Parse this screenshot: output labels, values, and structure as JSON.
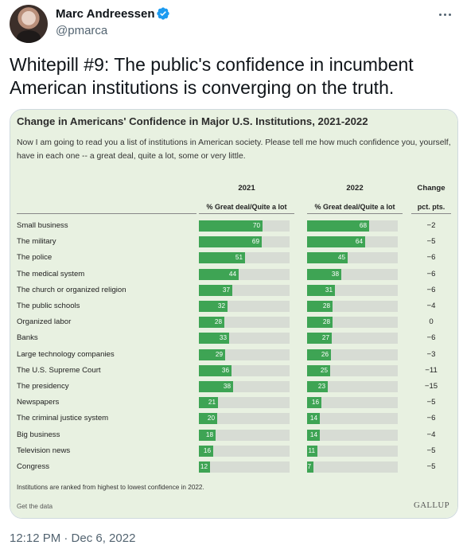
{
  "header": {
    "name": "Marc Andreessen",
    "handle": "@pmarca"
  },
  "tweet": {
    "text": "Whitepill #9: The public's confidence in incumbent American institutions is converging on the truth.",
    "timestamp": "12:12 PM · Dec 6, 2022"
  },
  "icons": {
    "verified": "verified-badge-icon",
    "more": "more-options-icon"
  },
  "colors": {
    "bar": "#3ea454",
    "track": "#d7dcd4",
    "card_background": "#e8f1e1",
    "verified": "#1d9bf0"
  },
  "chart": {
    "title": "Change in Americans' Confidence in Major U.S. Institutions, 2021-2022",
    "subtitle": "Now I am going to read you a list of institutions in American society. Please tell me how much confidence you, yourself, have in each one -- a great deal, quite a lot, some or very little.",
    "col_2021_year": "2021",
    "col_2022_year": "2022",
    "col_2021_sub": "% Great deal/Quite a lot",
    "col_2022_sub": "% Great deal/Quite a lot",
    "col_change": "Change",
    "col_change_sub": "pct. pts.",
    "footnote": "Institutions are ranked from highest to lowest confidence in 2022.",
    "get_data": "Get the data",
    "source": "GALLUP"
  },
  "chart_data": {
    "type": "bar",
    "title": "Change in Americans' Confidence in Major U.S. Institutions, 2021-2022",
    "categories": [
      "Small business",
      "The military",
      "The police",
      "The medical system",
      "The church or organized religion",
      "The public schools",
      "Organized labor",
      "Banks",
      "Large technology companies",
      "The U.S. Supreme Court",
      "The presidency",
      "Newspapers",
      "The criminal justice system",
      "Big business",
      "Television news",
      "Congress"
    ],
    "series": [
      {
        "name": "2021",
        "values": [
          70,
          69,
          51,
          44,
          37,
          32,
          28,
          33,
          29,
          36,
          38,
          21,
          20,
          18,
          16,
          12
        ]
      },
      {
        "name": "2022",
        "values": [
          68,
          64,
          45,
          38,
          31,
          28,
          28,
          27,
          26,
          25,
          23,
          16,
          14,
          14,
          11,
          7
        ]
      }
    ],
    "change": [
      "−2",
      "−5",
      "−6",
      "−6",
      "−6",
      "−4",
      "0",
      "−6",
      "−3",
      "−11",
      "−15",
      "−5",
      "−6",
      "−4",
      "−5",
      "−5"
    ],
    "ylim": [
      0,
      100
    ]
  }
}
